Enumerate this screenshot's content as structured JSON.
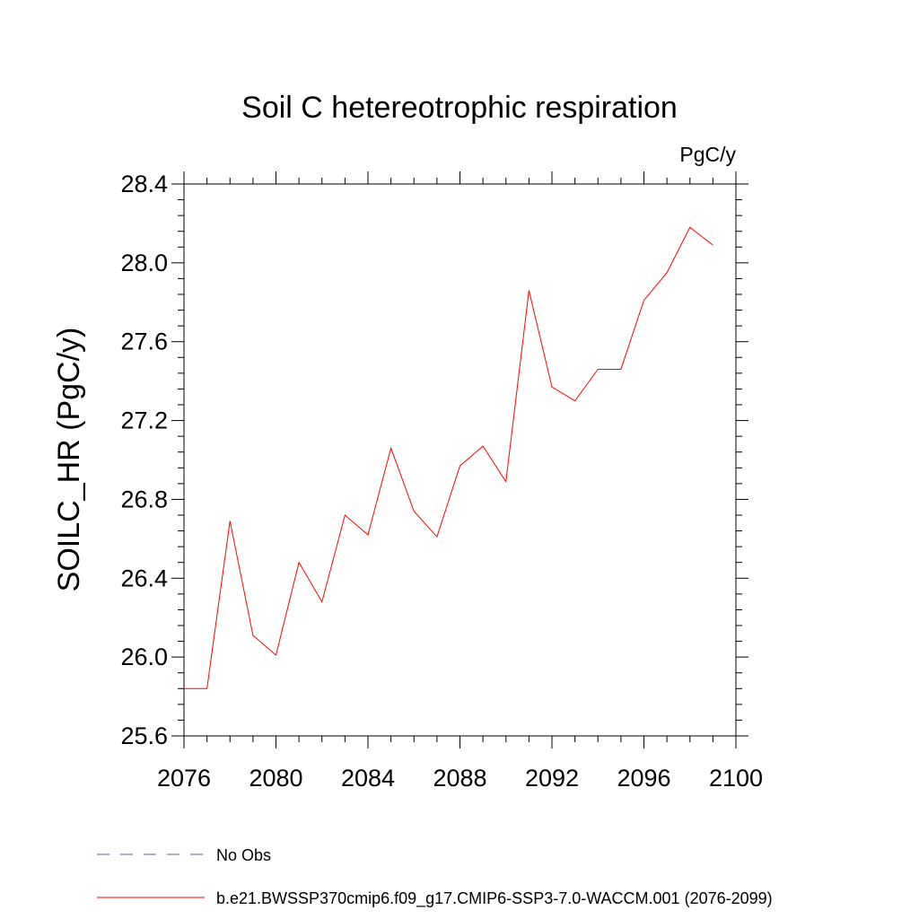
{
  "chart_data": {
    "type": "line",
    "title": "Soil C hetereotrophic respiration",
    "units": "PgC/y",
    "xlabel": "",
    "ylabel": "SOILC_HR  (PgC/y)",
    "xlim": [
      2076,
      2100
    ],
    "ylim": [
      25.6,
      28.4
    ],
    "x_ticks": [
      "2076",
      "2080",
      "2084",
      "2088",
      "2092",
      "2096",
      "2100"
    ],
    "y_ticks": [
      "25.6",
      "26.0",
      "26.4",
      "26.8",
      "27.2",
      "27.6",
      "28.0",
      "28.4"
    ],
    "grid": false,
    "legend_position": "bottom",
    "series": [
      {
        "name": "b.e21.BWSSP370cmip6.f09_g17.CMIP6-SSP3-7.0-WACCM.001 (2076-2099)",
        "color": "#ff0000",
        "style": "solid",
        "x": [
          2076,
          2077,
          2078,
          2079,
          2080,
          2081,
          2082,
          2083,
          2084,
          2085,
          2086,
          2087,
          2088,
          2089,
          2090,
          2091,
          2092,
          2093,
          2094,
          2095,
          2096,
          2097,
          2098,
          2099
        ],
        "y": [
          25.84,
          25.84,
          26.69,
          26.11,
          26.01,
          26.48,
          26.28,
          26.72,
          26.62,
          27.06,
          26.74,
          26.61,
          26.97,
          27.07,
          26.89,
          27.86,
          27.37,
          27.3,
          27.46,
          27.46,
          27.81,
          27.95,
          28.18,
          28.09
        ]
      }
    ],
    "legend": [
      {
        "label": "No Obs",
        "color": "#5a5aa8",
        "style": "dashed"
      },
      {
        "label": "b.e21.BWSSP370cmip6.f09_g17.CMIP6-SSP3-7.0-WACCM.001 (2076-2099)",
        "color": "#ff0000",
        "style": "solid"
      }
    ]
  }
}
